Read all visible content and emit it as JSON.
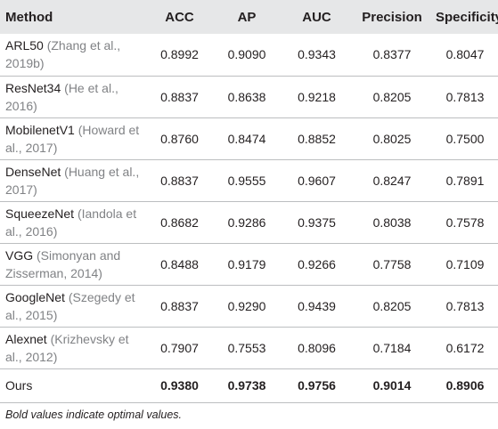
{
  "table": {
    "header": [
      "Method",
      "ACC",
      "AP",
      "AUC",
      "Precision",
      "Specificity"
    ],
    "rows": [
      {
        "method": "ARL50",
        "citation": "(Zhang et al., 2019b)",
        "values": [
          "0.8992",
          "0.9090",
          "0.9343",
          "0.8377",
          "0.8047"
        ]
      },
      {
        "method": "ResNet34",
        "citation": "(He et al., 2016)",
        "values": [
          "0.8837",
          "0.8638",
          "0.9218",
          "0.8205",
          "0.7813"
        ]
      },
      {
        "method": "MobilenetV1",
        "citation": "(Howard et al., 2017)",
        "values": [
          "0.8760",
          "0.8474",
          "0.8852",
          "0.8025",
          "0.7500"
        ]
      },
      {
        "method": "DenseNet",
        "citation": "(Huang et al., 2017)",
        "values": [
          "0.8837",
          "0.9555",
          "0.9607",
          "0.8247",
          "0.7891"
        ]
      },
      {
        "method": "SqueezeNet",
        "citation": "(Iandola et al., 2016)",
        "values": [
          "0.8682",
          "0.9286",
          "0.9375",
          "0.8038",
          "0.7578"
        ]
      },
      {
        "method": "VGG",
        "citation": "(Simonyan and Zisserman, 2014)",
        "values": [
          "0.8488",
          "0.9179",
          "0.9266",
          "0.7758",
          "0.7109"
        ]
      },
      {
        "method": "GoogleNet",
        "citation": "(Szegedy et al., 2015)",
        "values": [
          "0.8837",
          "0.9290",
          "0.9439",
          "0.8205",
          "0.7813"
        ]
      },
      {
        "method": "Alexnet",
        "citation": "(Krizhevsky et al., 2012)",
        "values": [
          "0.7907",
          "0.7553",
          "0.8096",
          "0.7184",
          "0.6172"
        ]
      },
      {
        "method": "Ours",
        "values": [
          "0.9380",
          "0.9738",
          "0.9756",
          "0.9014",
          "0.8906"
        ]
      }
    ],
    "footnote": "Bold values indicate optimal values."
  }
}
